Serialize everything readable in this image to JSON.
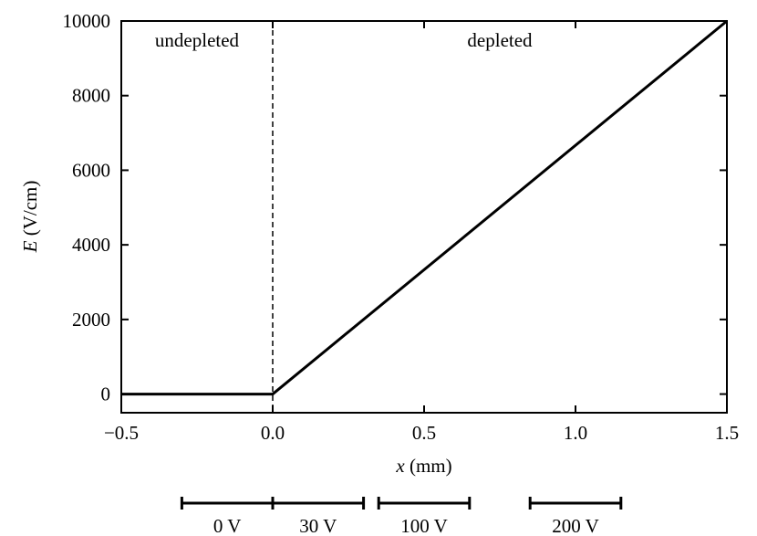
{
  "chart_data": {
    "type": "line",
    "xlabel_var": "x",
    "xlabel_unit": " (mm)",
    "ylabel_var": "E",
    "ylabel_unit": " (V/cm)",
    "xlim": [
      -0.5,
      1.5
    ],
    "ylim": [
      -500,
      10000
    ],
    "x_ticks": [
      -0.5,
      0.0,
      0.5,
      1.0,
      1.5
    ],
    "x_tick_labels": [
      "−0.5",
      "0.0",
      "0.5",
      "1.0",
      "1.5"
    ],
    "y_ticks": [
      0,
      2000,
      4000,
      6000,
      8000,
      10000
    ],
    "y_tick_labels": [
      "0",
      "2000",
      "4000",
      "6000",
      "8000",
      "10000"
    ],
    "grid": false,
    "series": [
      {
        "x": [
          -0.5,
          0.0,
          1.5
        ],
        "y": [
          0,
          0,
          10000
        ],
        "color": "#000000"
      }
    ],
    "boundary_x": 0.0,
    "regions": [
      {
        "label": "undepleted",
        "x": -0.25
      },
      {
        "label": "depleted",
        "x": 0.75
      }
    ],
    "voltage_bars": [
      {
        "label": "0 V",
        "x_start": -0.3,
        "x_end": 0.0
      },
      {
        "label": "30 V",
        "x_start": 0.0,
        "x_end": 0.3
      },
      {
        "label": "100 V",
        "x_start": 0.35,
        "x_end": 0.65
      },
      {
        "label": "200 V",
        "x_start": 0.85,
        "x_end": 1.15
      }
    ]
  }
}
